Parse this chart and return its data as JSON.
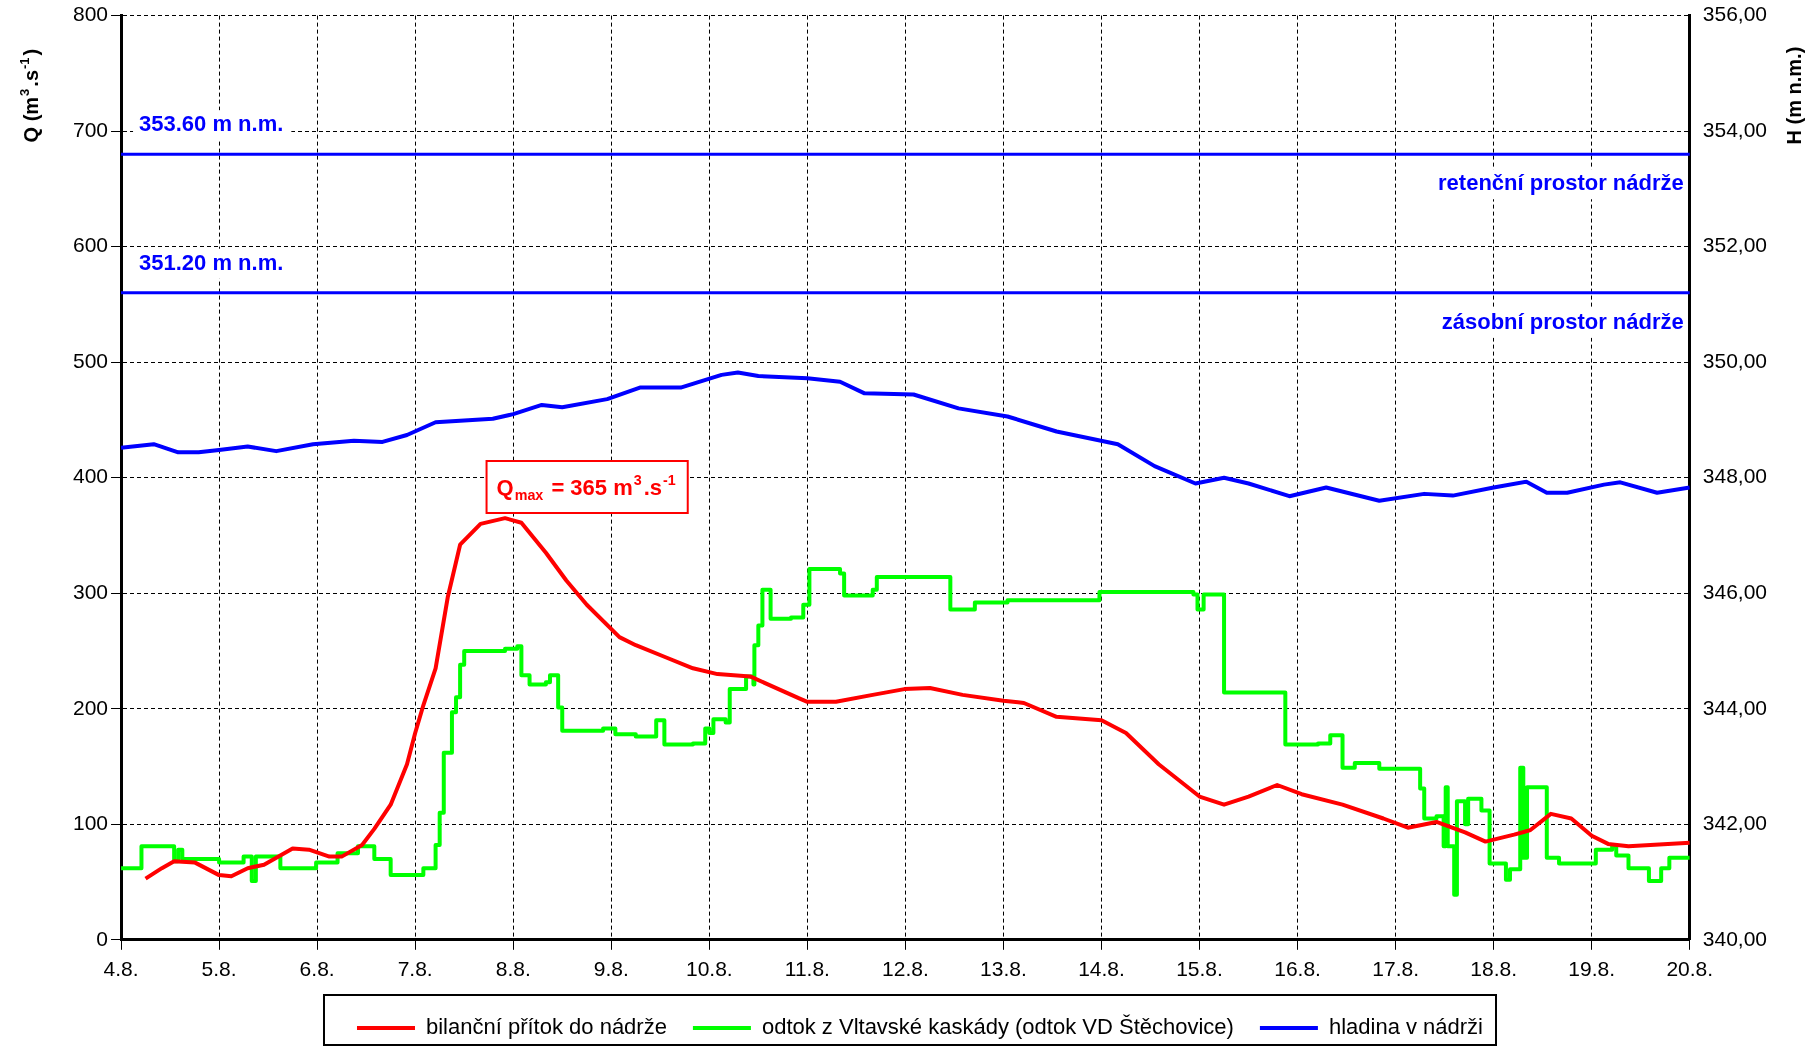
{
  "chart_data": {
    "type": "line",
    "ylabel": "Q (m$^{3}$.s$^{-1}$)",
    "y2label": "H (m n.m.)",
    "xlim": [
      "--08-04",
      "--08-20"
    ],
    "xticks": [
      {
        "value": "--08-04",
        "label": "4.8."
      },
      {
        "value": "--08-05",
        "label": "5.8."
      },
      {
        "value": "--08-06",
        "label": "6.8."
      },
      {
        "value": "--08-07",
        "label": "7.8."
      },
      {
        "value": "--08-08",
        "label": "8.8."
      },
      {
        "value": "--08-09",
        "label": "9.8."
      },
      {
        "value": "--08-10",
        "label": "10.8."
      },
      {
        "value": "--08-11",
        "label": "11.8."
      },
      {
        "value": "--08-12",
        "label": "12.8."
      },
      {
        "value": "--08-13",
        "label": "13.8."
      },
      {
        "value": "--08-14",
        "label": "14.8."
      },
      {
        "value": "--08-15",
        "label": "15.8."
      },
      {
        "value": "--08-16",
        "label": "16.8."
      },
      {
        "value": "--08-17",
        "label": "17.8."
      },
      {
        "value": "--08-18",
        "label": "18.8."
      },
      {
        "value": "--08-19",
        "label": "19.8."
      },
      {
        "value": "--08-20",
        "label": "20.8."
      }
    ],
    "ylim": [
      0,
      800
    ],
    "yticks": [
      0,
      100,
      200,
      300,
      400,
      500,
      600,
      700,
      800
    ],
    "y2lim": [
      340,
      356
    ],
    "y2ticks": [
      {
        "value": 340,
        "label": "340,00"
      },
      {
        "value": 342,
        "label": "342,00"
      },
      {
        "value": 344,
        "label": "344,00"
      },
      {
        "value": 346,
        "label": "346,00"
      },
      {
        "value": 348,
        "label": "348,00"
      },
      {
        "value": 350,
        "label": "350,00"
      },
      {
        "value": 352,
        "label": "352,00"
      },
      {
        "value": 354,
        "label": "354,00"
      },
      {
        "value": 356,
        "label": "356,00"
      }
    ],
    "grid": true,
    "legend": "bottom",
    "series": [
      {
        "name": "bilanční přítok do nádrže",
        "color": "#ff0000",
        "type": "line",
        "x": [
          "--08-04T06:00",
          "--08-04T10:00",
          "--08-04T13:00",
          "--08-04T18:00",
          "--08-05T00:00",
          "--08-05T03:00",
          "--08-05T07:00",
          "--08-05T11:00",
          "--08-05T18:00",
          "--08-05T22:00",
          "--08-06T03:00",
          "--08-06T06:00",
          "--08-06T11:00",
          "--08-06T14:00",
          "--08-06T18:00",
          "--08-06T22:00",
          "--08-07T00:00",
          "--08-07T02:00",
          "--08-07T05:00",
          "--08-07T08:00",
          "--08-07T11:00",
          "--08-07T16:00",
          "--08-07T22:00",
          "--08-08T02:00",
          "--08-08T08:00",
          "--08-08T13:00",
          "--08-08T18:00",
          "--08-09T02:00",
          "--08-09T06:00",
          "--08-09T13:00",
          "--08-09T20:00",
          "--08-10T02:00",
          "--08-10T10:00",
          "--08-10T22:00",
          "--08-11T00:00",
          "--08-11T07:00",
          "--08-11T16:00",
          "--08-11T23:45",
          "--08-12T06:00",
          "--08-12T14:00",
          "--08-13T00:00",
          "--08-13T05:00",
          "--08-13T13:00",
          "--08-14T00:00",
          "--08-14T06:00",
          "--08-14T14:00",
          "--08-15T00:00",
          "--08-15T06:00",
          "--08-15T12:00",
          "--08-15T19:00",
          "--08-16T01:00",
          "--08-16T11:00",
          "--08-16T21:00",
          "--08-17T03:00",
          "--08-17T10:00",
          "--08-17T17:00",
          "--08-17T22:00",
          "--08-18T05:00",
          "--08-18T09:00",
          "--08-18T14:00",
          "--08-18T19:00",
          "--08-19T00:00",
          "--08-19T04:00",
          "--08-19T09:00",
          "--08-20T00:00"
        ],
        "values": [
          53,
          62,
          68,
          67,
          56,
          55,
          62,
          65,
          79,
          78,
          72,
          72,
          82,
          96,
          117,
          152,
          179,
          203,
          235,
          297,
          342,
          360,
          365,
          361,
          335,
          311,
          290,
          262,
          255,
          245,
          235,
          230,
          228,
          209,
          206,
          206,
          212,
          217,
          218,
          212,
          207,
          205,
          193,
          190,
          179,
          152,
          124,
          117,
          124,
          134,
          126,
          117,
          105,
          97,
          102,
          93,
          85,
          91,
          95,
          109,
          105,
          90,
          83,
          81,
          84
        ]
      },
      {
        "name": "odtok z Vltavské kaskády (odtok VD Štěchovice)",
        "color": "#00ff00",
        "type": "step",
        "x": [
          "--08-04T00:00",
          "--08-04T05:00",
          "--08-04T13:00",
          "--08-04T14:00",
          "--08-04T15:00",
          "--08-05T00:00",
          "--08-05T06:00",
          "--08-05T08:00",
          "--08-05T09:00",
          "--08-05T15:00",
          "--08-05T23:45",
          "--08-06T05:00",
          "--08-06T10:00",
          "--08-06T14:00",
          "--08-06T18:00",
          "--08-07T02:00",
          "--08-07T05:00",
          "--08-07T06:00",
          "--08-07T07:00",
          "--08-07T09:00",
          "--08-07T10:00",
          "--08-07T11:00",
          "--08-07T12:00",
          "--08-07T22:00",
          "--08-08T01:00",
          "--08-08T02:00",
          "--08-08T04:00",
          "--08-08T08:00",
          "--08-08T09:00",
          "--08-08T11:00",
          "--08-08T12:00",
          "--08-08T22:00",
          "--08-09T01:00",
          "--08-09T06:00",
          "--08-09T11:00",
          "--08-09T13:00",
          "--08-09T20:00",
          "--08-09T23:00",
          "--08-10T00:00",
          "--08-10T01:00",
          "--08-10T04:00",
          "--08-10T05:00",
          "--08-10T09:00",
          "--08-10T10:48",
          "--08-10T11:02",
          "--08-10T12:00",
          "--08-10T13:00",
          "--08-10T15:00",
          "--08-10T20:00",
          "--08-10T23:00",
          "--08-11T00:30",
          "--08-11T08:00",
          "--08-11T09:00",
          "--08-11T16:00",
          "--08-11T17:00",
          "--08-12T09:00",
          "--08-12T11:00",
          "--08-12T17:00",
          "--08-13T01:00",
          "--08-13T23:30",
          "--08-14T22:30",
          "--08-14T23:30",
          "--08-15T01:00",
          "--08-15T06:00",
          "--08-15T18:00",
          "--08-15T21:00",
          "--08-16T05:00",
          "--08-16T08:00",
          "--08-16T11:00",
          "--08-16T14:00",
          "--08-16T20:00",
          "--08-17T05:00",
          "--08-17T06:00",
          "--08-17T07:00",
          "--08-17T10:00",
          "--08-17T11:45",
          "--08-17T12:15",
          "--08-17T12:45",
          "--08-17T14:20",
          "--08-17T15:00",
          "--08-17T17:00",
          "--08-17T17:45",
          "--08-17T21:00",
          "--08-17T23:00",
          "--08-18T03:00",
          "--08-18T04:00",
          "--08-18T06:30",
          "--08-18T07:15",
          "--08-18T08:10",
          "--08-18T13:00",
          "--08-18T16:00",
          "--08-19T01:00",
          "--08-19T05:00",
          "--08-19T06:00",
          "--08-19T09:00",
          "--08-19T14:00",
          "--08-19T17:00",
          "--08-19T19:00",
          "--08-20T00:00"
        ],
        "values": [
          62,
          81,
          68,
          78,
          70,
          67,
          72,
          51,
          72,
          62,
          67,
          75,
          81,
          70,
          56,
          62,
          82,
          110,
          162,
          197,
          210,
          238,
          250,
          252,
          254,
          229,
          221,
          223,
          229,
          201,
          181,
          183,
          178,
          176,
          190,
          169,
          170,
          183,
          179,
          191,
          188,
          217,
          228,
          221,
          255,
          272,
          303,
          278,
          279,
          290,
          321,
          317,
          298,
          303,
          314,
          314,
          286,
          292,
          294,
          301,
          299,
          286,
          299,
          214,
          214,
          169,
          170,
          177,
          149,
          153,
          148,
          148,
          131,
          105,
          107,
          81,
          132,
          81,
          39,
          120,
          100,
          122,
          112,
          66,
          52,
          61,
          149,
          71,
          132,
          71,
          66,
          78,
          81,
          73,
          62,
          51,
          62,
          71,
          71
        ]
      },
      {
        "name": "hladina v nádrži",
        "color": "#0000ff",
        "type": "line",
        "axis": "y2",
        "x": [
          "--08-04T00:00",
          "--08-04T08:00",
          "--08-04T14:00",
          "--08-04T19:00",
          "--08-05T00:00",
          "--08-05T07:00",
          "--08-05T14:00",
          "--08-05T23:00",
          "--08-06T09:00",
          "--08-06T16:00",
          "--08-06T22:00",
          "--08-07T05:00",
          "--08-07T19:00",
          "--08-08T00:00",
          "--08-08T07:00",
          "--08-08T12:00",
          "--08-08T23:00",
          "--08-09T07:00",
          "--08-09T17:00",
          "--08-10T03:00",
          "--08-10T07:00",
          "--08-10T12:00",
          "--08-11T00:00",
          "--08-11T08:00",
          "--08-11T14:00",
          "--08-12T02:00",
          "--08-12T13:00",
          "--08-13T01:00",
          "--08-13T13:00",
          "--08-14T04:00",
          "--08-14T13:00",
          "--08-14T23:00",
          "--08-15T06:00",
          "--08-15T12:00",
          "--08-15T22:00",
          "--08-16T07:00",
          "--08-16T20:00",
          "--08-17T07:00",
          "--08-17T14:00",
          "--08-18T00:00",
          "--08-18T08:00",
          "--08-18T13:00",
          "--08-18T18:00",
          "--08-19T03:00",
          "--08-19T07:00",
          "--08-19T16:00",
          "--08-20T00:00"
        ],
        "values": [
          348.52,
          348.58,
          348.44,
          348.44,
          348.48,
          348.54,
          348.46,
          348.58,
          348.64,
          348.62,
          348.74,
          348.96,
          349.02,
          349.1,
          349.26,
          349.22,
          349.36,
          349.56,
          349.56,
          349.78,
          349.82,
          349.76,
          349.72,
          349.66,
          349.46,
          349.44,
          349.2,
          349.06,
          348.8,
          348.58,
          348.2,
          347.9,
          348.0,
          347.9,
          347.68,
          347.83,
          347.6,
          347.72,
          347.69,
          347.83,
          347.93,
          347.74,
          347.74,
          347.88,
          347.92,
          347.74,
          347.83
        ]
      }
    ],
    "ref_lines": [
      {
        "axis": "y2",
        "value": 353.6,
        "label": "353.60 m n.m.",
        "color": "#0000ff"
      },
      {
        "axis": "y2",
        "value": 351.2,
        "label": "351.20 m n.m.",
        "color": "#0000ff"
      }
    ],
    "annotations": [
      "retenční prostor nádrže",
      "zásobní prostor nádrže",
      "Q$_{max}$ = 365 m$^{3}$.s$^{-1}$"
    ]
  }
}
